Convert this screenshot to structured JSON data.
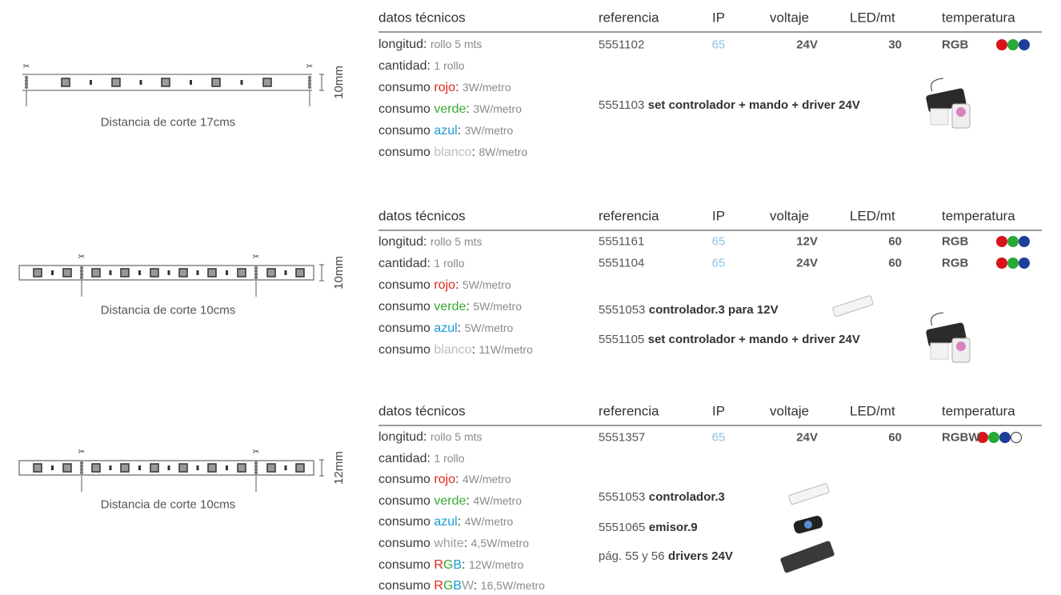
{
  "blocks": [
    {
      "diagram": {
        "dimension": "10mm",
        "caption": "Distancia de corte 17cms"
      },
      "header": [
        "datos técnicos",
        "referencia",
        "IP",
        "voltaje",
        "LED/mt",
        "temperatura"
      ],
      "specs": [
        {
          "parts": [
            {
              "text": "longitud:"
            }
          ],
          "value": "rollo 5 mts"
        },
        {
          "parts": [
            {
              "text": "cantidad:"
            }
          ],
          "value": "1 rollo"
        },
        {
          "parts": [
            {
              "text": "consumo "
            },
            {
              "text": "rojo",
              "color": "#e1251b"
            },
            {
              "text": ":"
            }
          ],
          "value": "3W/metro"
        },
        {
          "parts": [
            {
              "text": "consumo "
            },
            {
              "text": "verde",
              "color": "#3aa935"
            },
            {
              "text": ":"
            }
          ],
          "value": "3W/metro"
        },
        {
          "parts": [
            {
              "text": "consumo "
            },
            {
              "text": "azul",
              "color": "#1c9ad6"
            },
            {
              "text": ":"
            }
          ],
          "value": "3W/metro"
        },
        {
          "parts": [
            {
              "text": "consumo "
            },
            {
              "text": "blanco",
              "color": "#bdbdbd"
            },
            {
              "text": ":"
            }
          ],
          "value": "8W/metro"
        }
      ],
      "rows": [
        {
          "referencia": "5551102",
          "ip": "65",
          "voltaje": "24V",
          "led": "30",
          "temperatura": "RGB",
          "dots": [
            "#d7141a",
            "#2aa839",
            "#1d3f9a"
          ]
        }
      ],
      "accessories": [
        {
          "code": "5551103",
          "name": "set controlador + mando + driver 24V"
        }
      ]
    },
    {
      "diagram": {
        "dimension": "10mm",
        "caption": "Distancia de corte 10cms"
      },
      "header": [
        "datos técnicos",
        "referencia",
        "IP",
        "voltaje",
        "LED/mt",
        "temperatura"
      ],
      "specs": [
        {
          "parts": [
            {
              "text": "longitud:"
            }
          ],
          "value": "rollo 5 mts"
        },
        {
          "parts": [
            {
              "text": "cantidad:"
            }
          ],
          "value": "1 rollo"
        },
        {
          "parts": [
            {
              "text": "consumo "
            },
            {
              "text": "rojo",
              "color": "#e1251b"
            },
            {
              "text": ":"
            }
          ],
          "value": "5W/metro"
        },
        {
          "parts": [
            {
              "text": "consumo "
            },
            {
              "text": "verde",
              "color": "#3aa935"
            },
            {
              "text": ":"
            }
          ],
          "value": "5W/metro"
        },
        {
          "parts": [
            {
              "text": "consumo "
            },
            {
              "text": "azul",
              "color": "#1c9ad6"
            },
            {
              "text": ":"
            }
          ],
          "value": "5W/metro"
        },
        {
          "parts": [
            {
              "text": "consumo "
            },
            {
              "text": "blanco",
              "color": "#bdbdbd"
            },
            {
              "text": ":"
            }
          ],
          "value": "11W/metro"
        }
      ],
      "rows": [
        {
          "referencia": "5551161",
          "ip": "65",
          "voltaje": "12V",
          "led": "60",
          "temperatura": "RGB",
          "dots": [
            "#d7141a",
            "#2aa839",
            "#1d3f9a"
          ]
        },
        {
          "referencia": "5551104",
          "ip": "65",
          "voltaje": "24V",
          "led": "60",
          "temperatura": "RGB",
          "dots": [
            "#d7141a",
            "#2aa839",
            "#1d3f9a"
          ]
        }
      ],
      "accessories": [
        {
          "code": "5551053",
          "name": "controlador.3 para 12V"
        },
        {
          "code": "5551105",
          "name": "set controlador + mando + driver 24V"
        }
      ]
    },
    {
      "diagram": {
        "dimension": "12mm",
        "caption": "Distancia de corte 10cms"
      },
      "header": [
        "datos técnicos",
        "referencia",
        "IP",
        "voltaje",
        "LED/mt",
        "temperatura"
      ],
      "specs": [
        {
          "parts": [
            {
              "text": "longitud:"
            }
          ],
          "value": "rollo 5 mts"
        },
        {
          "parts": [
            {
              "text": "cantidad:"
            }
          ],
          "value": "1 rollo"
        },
        {
          "parts": [
            {
              "text": "consumo "
            },
            {
              "text": "rojo",
              "color": "#e1251b"
            },
            {
              "text": ":"
            }
          ],
          "value": "4W/metro"
        },
        {
          "parts": [
            {
              "text": "consumo "
            },
            {
              "text": "verde",
              "color": "#3aa935"
            },
            {
              "text": ":"
            }
          ],
          "value": "4W/metro"
        },
        {
          "parts": [
            {
              "text": "consumo "
            },
            {
              "text": "azul",
              "color": "#1c9ad6"
            },
            {
              "text": ":"
            }
          ],
          "value": "4W/metro"
        },
        {
          "parts": [
            {
              "text": "consumo "
            },
            {
              "text": "white",
              "color": "#9e9e9e"
            },
            {
              "text": ":"
            }
          ],
          "value": "4,5W/metro"
        },
        {
          "parts": [
            {
              "text": "consumo "
            },
            {
              "text": "R",
              "color": "#e1251b"
            },
            {
              "text": "G",
              "color": "#3aa935"
            },
            {
              "text": "B",
              "color": "#1c9ad6"
            },
            {
              "text": ":"
            }
          ],
          "value": "12W/metro"
        },
        {
          "parts": [
            {
              "text": "consumo "
            },
            {
              "text": "R",
              "color": "#e1251b"
            },
            {
              "text": "G",
              "color": "#3aa935"
            },
            {
              "text": "B",
              "color": "#1c9ad6"
            },
            {
              "text": "W",
              "color": "#9e9e9e"
            },
            {
              "text": ":"
            }
          ],
          "value": "16,5W/metro"
        }
      ],
      "rows": [
        {
          "referencia": "5551357",
          "ip": "65",
          "voltaje": "24V",
          "led": "60",
          "temperatura": "RGBW",
          "dots": [
            "#d7141a",
            "#2aa839",
            "#1d3f9a",
            "#ffffff"
          ]
        }
      ],
      "accessories": [
        {
          "code": "5551053",
          "name": "controlador.3"
        },
        {
          "code": "5551065",
          "name": "emisor.9"
        },
        {
          "code": "pág. 55 y 56",
          "name": "drivers 24V"
        }
      ]
    }
  ]
}
